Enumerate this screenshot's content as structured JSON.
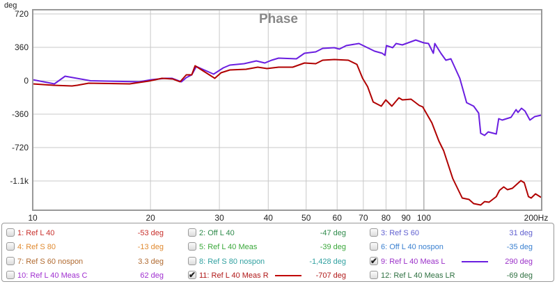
{
  "chart_data": {
    "type": "line",
    "title": "Phase",
    "ylabel": "deg",
    "xlabel": "Hz",
    "xscale": "log",
    "xlim": [
      10,
      200
    ],
    "ylim": [
      -1395,
      765
    ],
    "grid": true,
    "xticks": [
      10,
      20,
      30,
      40,
      50,
      60,
      70,
      80,
      90,
      100,
      200
    ],
    "xtick_labels": [
      "10",
      "20",
      "30",
      "40",
      "50",
      "60",
      "70",
      "80",
      "90",
      "100",
      "200Hz"
    ],
    "yticks": [
      720,
      360,
      0,
      -360,
      -720,
      -1080
    ],
    "ytick_labels": [
      "720",
      "360",
      "0",
      "-360",
      "-720",
      "-1.1k"
    ],
    "series": [
      {
        "name": "9: Ref L 40 Meas L",
        "color": "#6a1ee0",
        "x": [
          10,
          11.36,
          12.1,
          14.05,
          18.7,
          20.1,
          21.8,
          22.7,
          24.0,
          24.7,
          25.5,
          26.2,
          29.0,
          30.7,
          31.9,
          34.7,
          37.3,
          39.2,
          40.8,
          42.5,
          47.2,
          49.5,
          52.9,
          55.1,
          59.0,
          60.8,
          63.3,
          68.2,
          74.8,
          78.2,
          79.5,
          80.2,
          83.2,
          84.9,
          88.1,
          95.3,
          99.9,
          102.7,
          105.7,
          106.6,
          110.5,
          113.8,
          117.2,
          123.5,
          128.6,
          134.0,
          138.0,
          139.7,
          142.9,
          146.0,
          153.1,
          155.3,
          158.5,
          167.0,
          172.0,
          174.0,
          177.6,
          181.3,
          186.6,
          192.0,
          199.3
        ],
        "y": [
          11,
          -34,
          49,
          0,
          -11,
          11,
          26,
          26,
          -11,
          34,
          64,
          154,
          71,
          139,
          169,
          184,
          214,
          191,
          221,
          244,
          236,
          296,
          311,
          349,
          356,
          341,
          379,
          401,
          319,
          296,
          274,
          379,
          356,
          401,
          386,
          439,
          409,
          401,
          296,
          401,
          296,
          221,
          236,
          26,
          -236,
          -274,
          -349,
          -566,
          -589,
          -551,
          -574,
          -409,
          -424,
          -394,
          -311,
          -341,
          -296,
          -326,
          -424,
          -386,
          -371
        ]
      },
      {
        "name": "11: Ref L 40 Meas R",
        "color": "#b00000",
        "x": [
          10,
          11.3,
          12.6,
          13.0,
          13.9,
          17.7,
          19.8,
          21.4,
          22.8,
          23.8,
          24.7,
          25.5,
          26.0,
          29.2,
          30.3,
          31.9,
          35.1,
          37.6,
          39.7,
          42.5,
          46.2,
          49.5,
          52.9,
          55.1,
          59.0,
          64.1,
          67.4,
          69.7,
          71.8,
          74.2,
          77.8,
          79.9,
          82.8,
          86.3,
          88.1,
          92.7,
          97.3,
          99.3,
          104.8,
          109.2,
          112.3,
          118.5,
          125.3,
          130.4,
          134.0,
          139.7,
          142.9,
          146.7,
          153.1,
          156.0,
          160.0,
          163.5,
          168.3,
          176.9,
          180.5,
          185.0,
          188.0,
          192.8,
          199.3
        ],
        "y": [
          -34,
          -49,
          -56,
          -49,
          -26,
          -34,
          -4,
          26,
          19,
          -11,
          64,
          64,
          161,
          26,
          86,
          116,
          124,
          146,
          131,
          146,
          146,
          191,
          184,
          221,
          229,
          221,
          176,
          26,
          -64,
          -229,
          -274,
          -206,
          -274,
          -184,
          -206,
          -199,
          -266,
          -281,
          -454,
          -649,
          -754,
          -1054,
          -1264,
          -1279,
          -1324,
          -1339,
          -1302,
          -1309,
          -1249,
          -1181,
          -1144,
          -1174,
          -1159,
          -1076,
          -1099,
          -1249,
          -1264,
          -1219,
          -1256
        ]
      }
    ]
  },
  "legend": [
    {
      "label": "1: Ref L 40",
      "value": "-53 deg",
      "checked": false,
      "color": "#c8302c"
    },
    {
      "label": "2: Off L 40",
      "value": "-47 deg",
      "checked": false,
      "color": "#2e8a4a"
    },
    {
      "label": "3: Ref S 60",
      "value": "31 deg",
      "checked": false,
      "color": "#6060d0"
    },
    {
      "label": "4: Ref S 80",
      "value": "-13 deg",
      "checked": false,
      "color": "#e08a30"
    },
    {
      "label": "5: Ref L 40 Meas",
      "value": "-39 deg",
      "checked": false,
      "color": "#3aa83a"
    },
    {
      "label": "6: Off L 40 nospon",
      "value": "-35 deg",
      "checked": false,
      "color": "#3a80d0"
    },
    {
      "label": "7: Ref S 60 nospon",
      "value": "3.3 deg",
      "checked": false,
      "color": "#b06a30"
    },
    {
      "label": "8: Ref S 80 nospon",
      "value": "-1,428 deg",
      "checked": false,
      "color": "#30a0a0"
    },
    {
      "label": "9: Ref L 40 Meas L",
      "value": "290 deg",
      "checked": true,
      "color": "#9a30c8",
      "swatch": "#6a1ee0"
    },
    {
      "label": "10: Ref L 40 Meas C",
      "value": "62 deg",
      "checked": false,
      "color": "#a030d0"
    },
    {
      "label": "11: Ref L 40 Meas R",
      "value": "-707 deg",
      "checked": true,
      "color": "#b01818",
      "swatch": "#c00000"
    },
    {
      "label": "12: Ref L 40 Meas LR",
      "value": "-69 deg",
      "checked": false,
      "color": "#2e7040"
    }
  ]
}
